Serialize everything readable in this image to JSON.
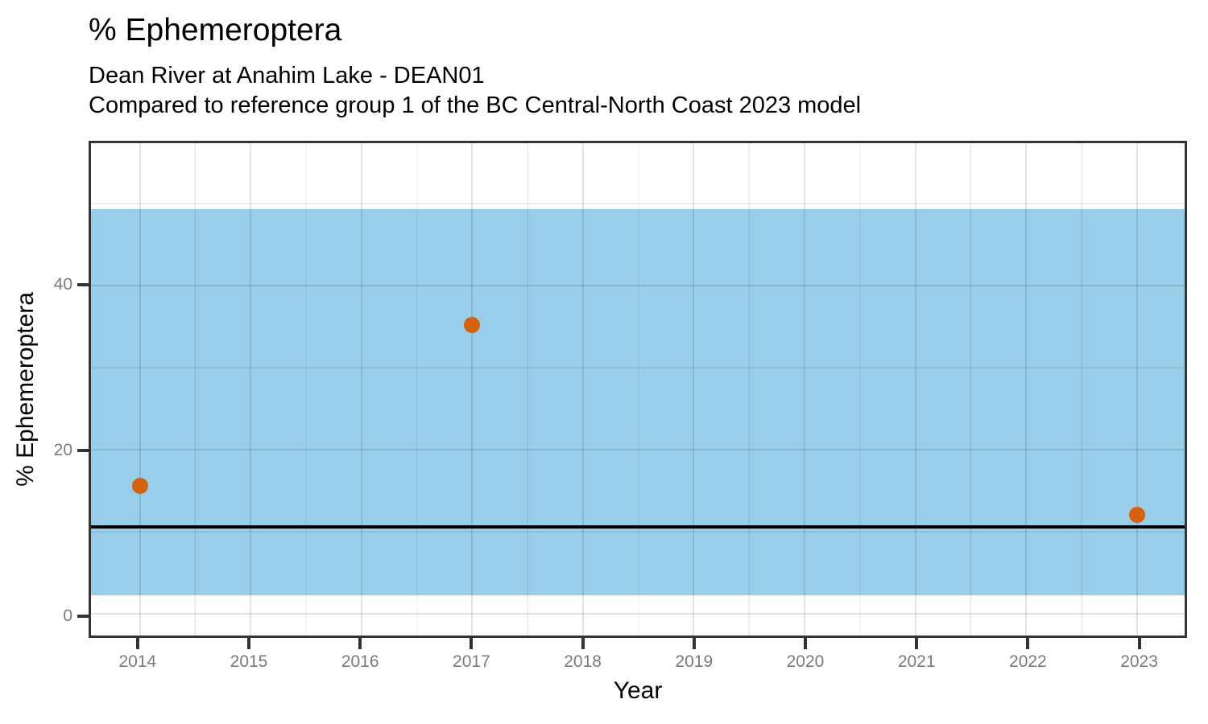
{
  "chart_data": {
    "type": "scatter",
    "title": "% Ephemeroptera",
    "subtitle_lines": [
      "Dean River at Anahim Lake - DEAN01",
      "Compared to reference group 1 of the BC Central-North Coast 2023 model"
    ],
    "xlabel": "Year",
    "ylabel": "% Ephemeroptera",
    "x_ticks": [
      2014,
      2015,
      2016,
      2017,
      2018,
      2019,
      2020,
      2021,
      2022,
      2023
    ],
    "x_minor": [
      2014.5,
      2015.5,
      2016.5,
      2017.5,
      2018.5,
      2019.5,
      2020.5,
      2021.5,
      2022.5
    ],
    "y_ticks": [
      0,
      20,
      40
    ],
    "y_minor": [
      10,
      30,
      50
    ],
    "xlim": [
      2013.56,
      2023.43
    ],
    "ylim": [
      -2.65,
      57.4
    ],
    "points": [
      {
        "x": 2014,
        "y": 15.6
      },
      {
        "x": 2017,
        "y": 35.2
      },
      {
        "x": 2023,
        "y": 12.1
      }
    ],
    "reference_band": {
      "low": 2.3,
      "high": 49.4
    },
    "reference_line": {
      "value": 10.6
    },
    "grid": "major and minor, light gray",
    "legend_position": "none",
    "colors": {
      "point": "#D6620E",
      "band": "#99CEEB",
      "reference_line": "#000000",
      "panel_border": "#333333",
      "tick_label": "#7B7B7B",
      "text": "#000000"
    }
  }
}
